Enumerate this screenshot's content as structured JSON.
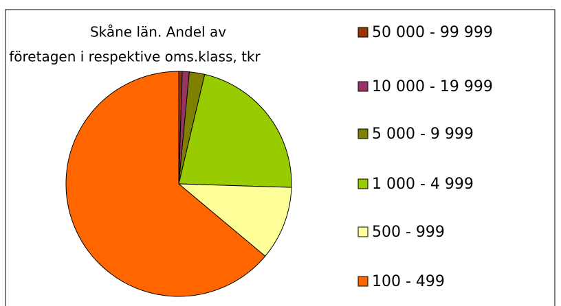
{
  "chart_data": {
    "type": "pie",
    "title": [
      "Skåne län. Andel av",
      "företagen i respektive oms.klass, tkr"
    ],
    "categories": [
      "50 000 - 99 999",
      "10 000 - 19 999",
      "5 000 - 9 999",
      "1 000 - 4 999",
      "500 - 999",
      "100 - 499"
    ],
    "values": [
      0.5,
      1.0,
      2.2,
      21.8,
      10.6,
      63.9
    ],
    "colors": [
      "#993300",
      "#993366",
      "#808000",
      "#99cc00",
      "#ffff99",
      "#ff6600"
    ],
    "legend": "right"
  }
}
